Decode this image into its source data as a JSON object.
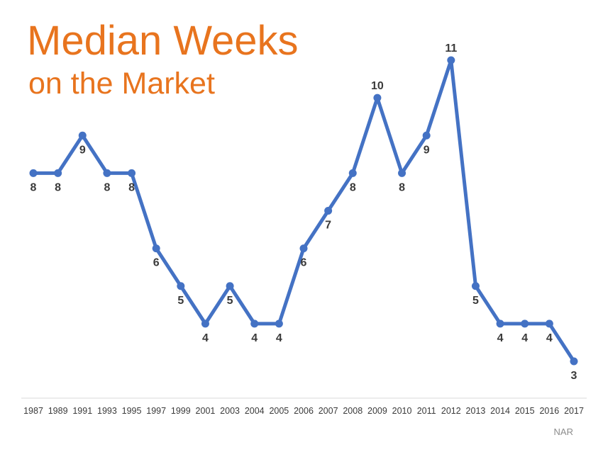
{
  "chart_data": {
    "type": "line",
    "title": "Median Weeks",
    "subtitle": "on the Market",
    "source": "NAR",
    "categories": [
      "1987",
      "1989",
      "1991",
      "1993",
      "1995",
      "1997",
      "1999",
      "2001",
      "2003",
      "2004",
      "2005",
      "2006",
      "2007",
      "2008",
      "2009",
      "2010",
      "2011",
      "2012",
      "2013",
      "2014",
      "2015",
      "2016",
      "2017"
    ],
    "values": [
      8,
      8,
      9,
      8,
      8,
      6,
      5,
      4,
      5,
      4,
      4,
      6,
      7,
      8,
      10,
      8,
      9,
      11,
      5,
      4,
      4,
      4,
      3
    ],
    "label_position": [
      "below",
      "below",
      "below",
      "below",
      "below",
      "below",
      "below",
      "below",
      "below",
      "below",
      "below",
      "below",
      "below",
      "below",
      "above",
      "below",
      "below",
      "above",
      "below",
      "below",
      "below",
      "below",
      "below"
    ],
    "xlabel": "",
    "ylabel": "",
    "ylim": [
      3,
      11
    ],
    "grid": false,
    "legend": "none",
    "colors": {
      "line": "#4472c4",
      "title": "#e8741e",
      "labels": "#3a3a3a",
      "axis": "#d9d9d9",
      "source": "#8c8c8c"
    }
  }
}
